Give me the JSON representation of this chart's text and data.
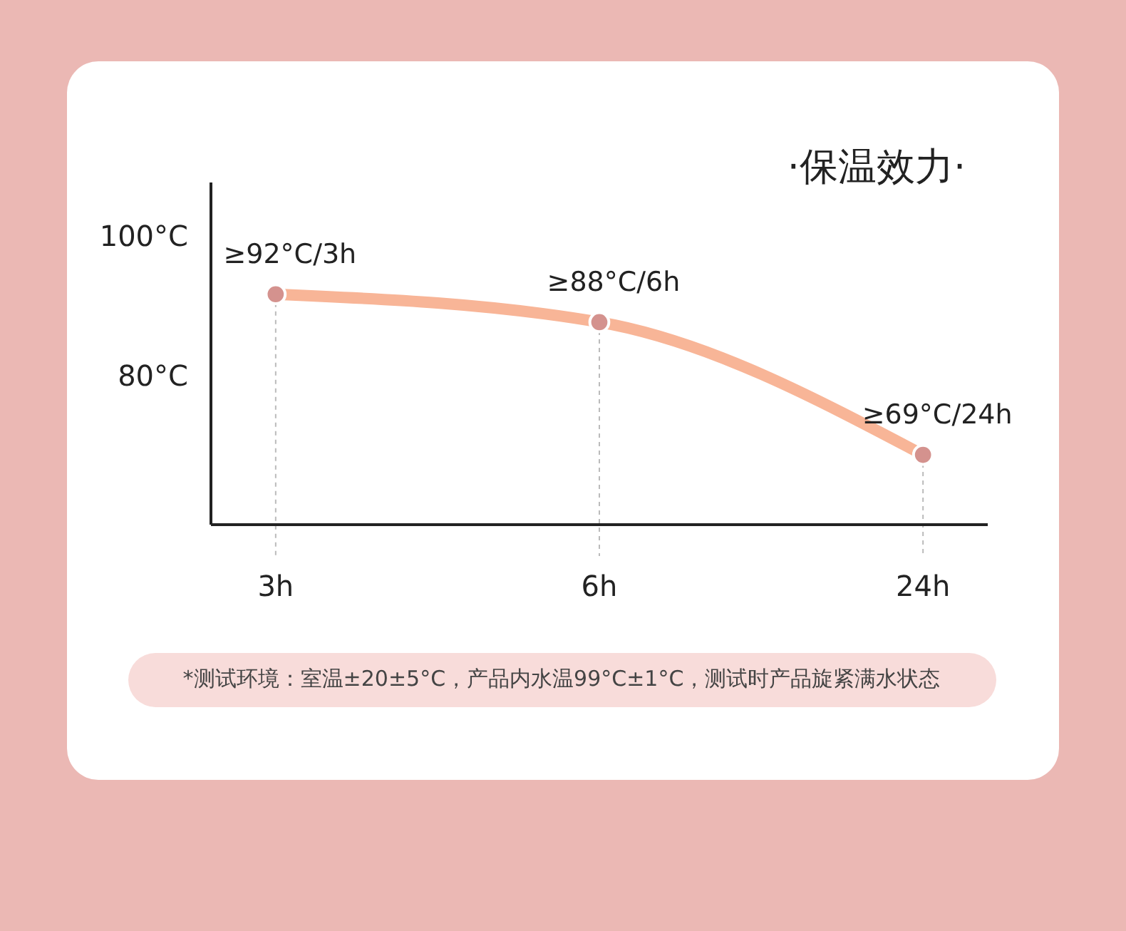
{
  "chart_data": {
    "type": "line",
    "title": "·保温效力·",
    "categories": [
      "3h",
      "6h",
      "24h"
    ],
    "series": [
      {
        "color": "#f8b597",
        "values": [
          92,
          88,
          69
        ],
        "value_labels": [
          "≥92°C/3h",
          "≥88°C/6h",
          "≥69°C/24h"
        ]
      }
    ],
    "ylim": [
      59,
      108
    ],
    "yticks": [
      {
        "value": 80,
        "label": "80°C"
      },
      {
        "value": 100,
        "label": "100°C"
      }
    ],
    "grid": false,
    "marker": "circle",
    "line_style": "solid",
    "ref_lines": [
      {
        "axis": "x",
        "value": "3h",
        "color": "#bbbbbb",
        "line_style": "dashed"
      },
      {
        "axis": "x",
        "value": "6h",
        "color": "#bbbbbb",
        "line_style": "dashed"
      },
      {
        "axis": "x",
        "value": "24h",
        "color": "#bbbbbb",
        "line_style": "dashed"
      }
    ],
    "annotations": [
      "*测试环境：室温±20±5°C，产品内水温99°C±1°C，测试时产品旋紧满水状态"
    ]
  }
}
